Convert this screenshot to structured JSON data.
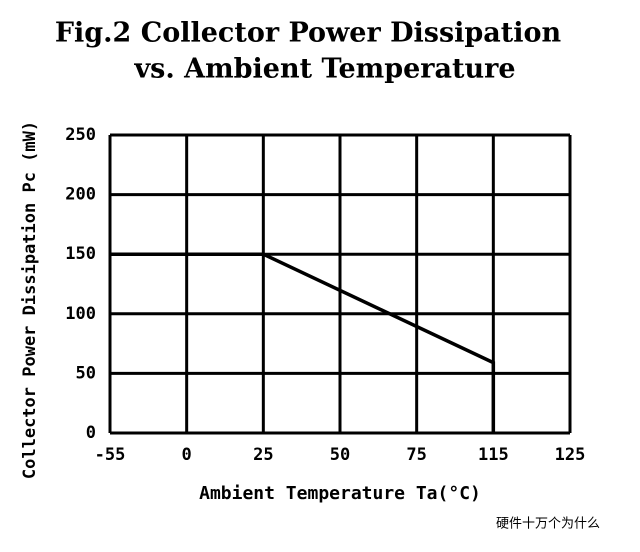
{
  "chart_data": {
    "type": "line",
    "title": "Fig.2 Collector Power Dissipation",
    "subtitle": "vs. Ambient Temperature",
    "x_label": "Ambient Temperature Ta(°C)",
    "y_label": "Collector Power Dissipation Pc (mW)",
    "x": [
      -55,
      25,
      115,
      115
    ],
    "series": [
      {
        "name": "Pc",
        "color": "#000000",
        "values": [
          150,
          150,
          59,
          0
        ]
      }
    ],
    "xlim": [
      -55,
      125
    ],
    "xticks": [
      -55,
      0,
      25,
      50,
      75,
      115,
      125
    ],
    "ylim": [
      0,
      250
    ],
    "yticks": [
      0,
      50,
      100,
      150,
      200,
      250
    ],
    "grid": true,
    "watermark": "硬件十万个为什么"
  }
}
